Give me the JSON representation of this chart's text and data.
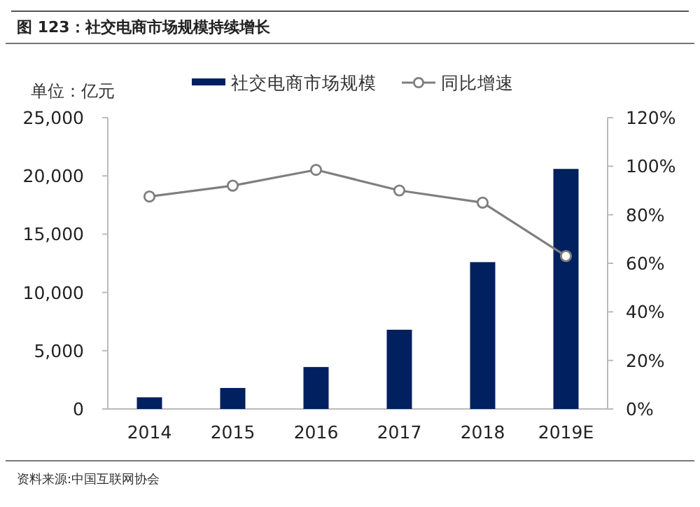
{
  "chart_data": {
    "type": "bar",
    "title": "图 123：社交电商市场规模持续增长",
    "ylabel": "单位：亿元",
    "categories": [
      "2014",
      "2015",
      "2016",
      "2017",
      "2018",
      "2019E"
    ],
    "series": [
      {
        "name": "社交电商市场规模",
        "color": "#002060",
        "values": [
          1000,
          1800,
          3600,
          6800,
          12600,
          20600
        ]
      },
      {
        "name": "同比增速",
        "type": "line",
        "axis": "y2",
        "color": "#7f7f7f",
        "marker": "circle",
        "values": [
          87.5,
          92,
          98.5,
          90,
          85,
          63
        ]
      }
    ],
    "ylim": [
      0,
      25000
    ],
    "yticks": [
      {
        "value": 0,
        "label": "0"
      },
      {
        "value": 5000,
        "label": "5,000"
      },
      {
        "value": 10000,
        "label": "10,000"
      },
      {
        "value": 15000,
        "label": "15,000"
      },
      {
        "value": 20000,
        "label": "20,000"
      },
      {
        "value": 25000,
        "label": "25,000"
      }
    ],
    "y2lim": [
      0,
      120
    ],
    "y2ticks": [
      {
        "value": 0,
        "label": "0%"
      },
      {
        "value": 20,
        "label": "20%"
      },
      {
        "value": 40,
        "label": "40%"
      },
      {
        "value": 60,
        "label": "60%"
      },
      {
        "value": 80,
        "label": "80%"
      },
      {
        "value": 100,
        "label": "100%"
      },
      {
        "value": 120,
        "label": "120%"
      }
    ],
    "legend": "top",
    "grid": false,
    "annotations": [
      "资料来源:中国互联网协会"
    ]
  }
}
